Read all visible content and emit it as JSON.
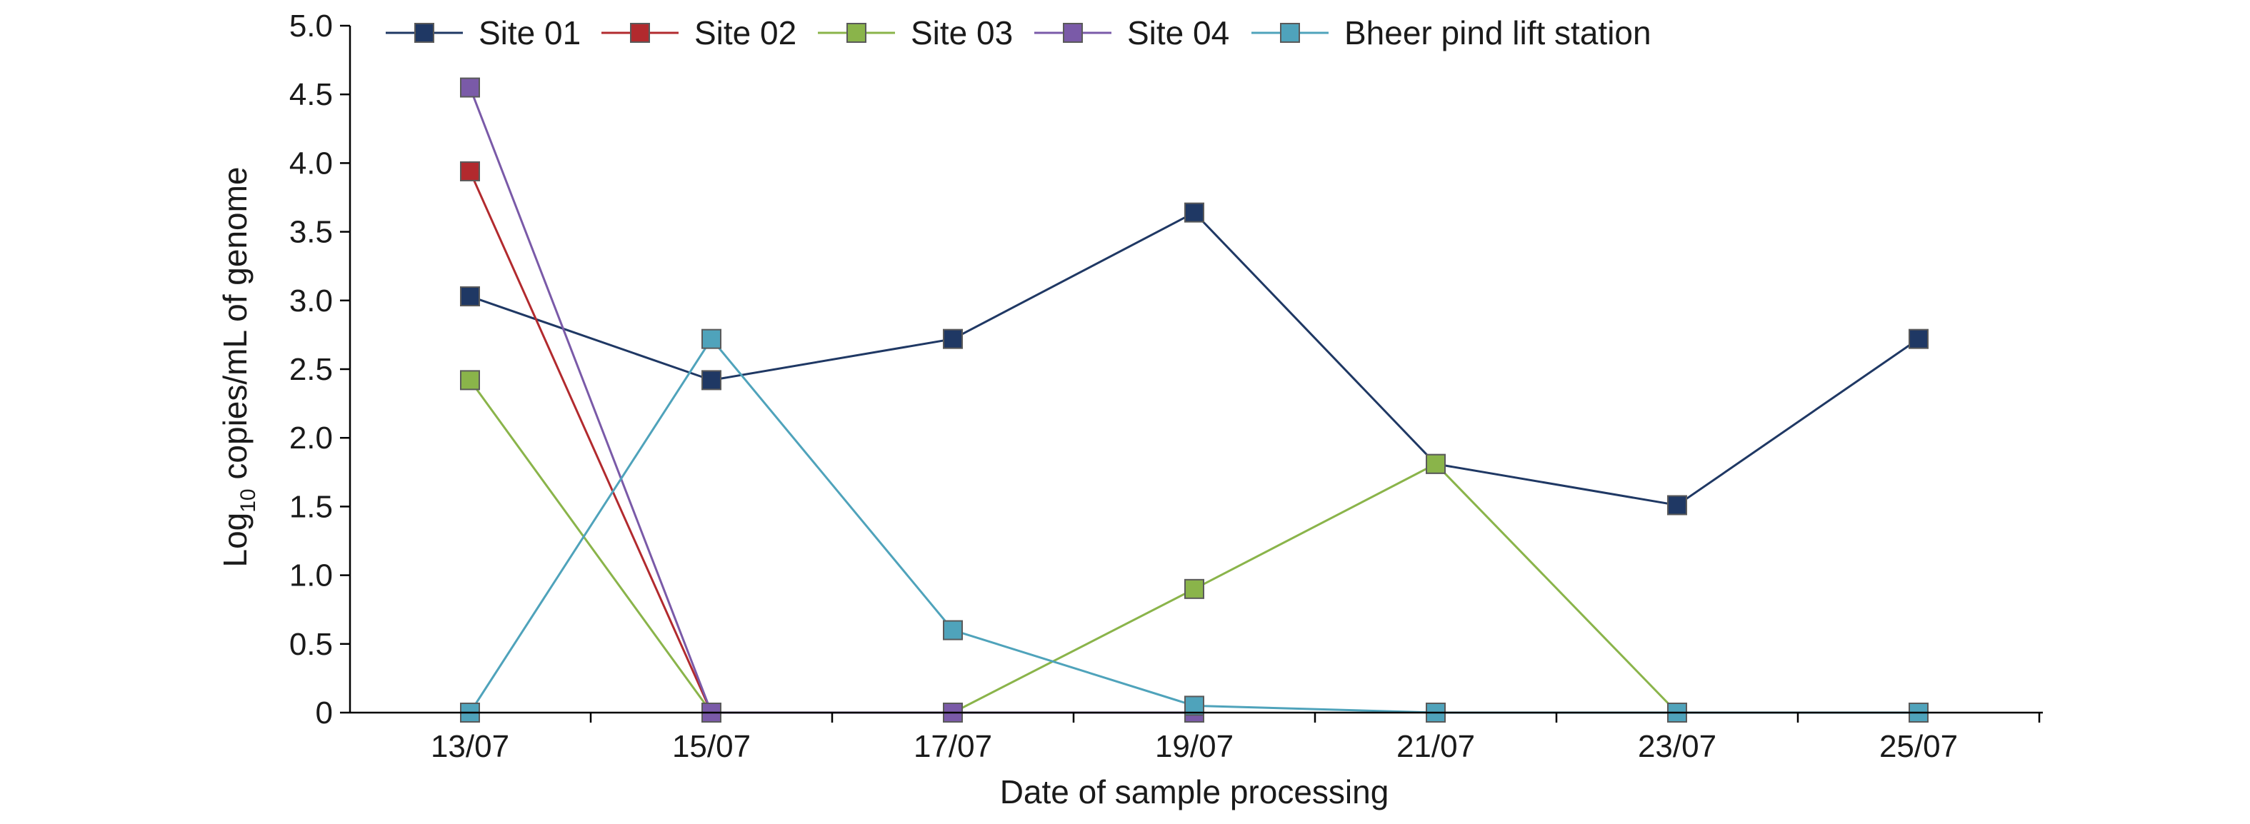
{
  "chart_data": {
    "type": "line",
    "title": "",
    "xlabel": "Date of sample processing",
    "ylabel": {
      "prefix": "Log",
      "subscript": "10",
      "suffix": " copies/mL of genome"
    },
    "categories": [
      "13/07",
      "15/07",
      "17/07",
      "19/07",
      "21/07",
      "23/07",
      "25/07"
    ],
    "y_ticks": [
      "0",
      "0.5",
      "1.0",
      "1.5",
      "2.0",
      "2.5",
      "3.0",
      "3.5",
      "4.0",
      "4.5",
      "5.0"
    ],
    "ylim": [
      0,
      5
    ],
    "grid": false,
    "legend_position": "top",
    "series": [
      {
        "name": "Site 01",
        "color": "#1f3864",
        "marker": "square",
        "points": [
          [
            "13/07",
            3.03
          ],
          [
            "15/07",
            2.42
          ],
          [
            "17/07",
            2.72
          ],
          [
            "19/07",
            3.64
          ],
          [
            "21/07",
            1.81
          ],
          [
            "23/07",
            1.51
          ],
          [
            "25/07",
            2.72
          ]
        ]
      },
      {
        "name": "Site 02",
        "color": "#b22a2e",
        "marker": "square",
        "points": [
          [
            "13/07",
            3.94
          ],
          [
            "15/07",
            0
          ]
        ]
      },
      {
        "name": "Site 03",
        "color": "#8ab44a",
        "marker": "square",
        "points": [
          [
            "13/07",
            2.42
          ],
          [
            "15/07",
            0
          ],
          [
            "17/07",
            0
          ],
          [
            "19/07",
            0.9
          ],
          [
            "21/07",
            1.81
          ],
          [
            "23/07",
            0
          ]
        ]
      },
      {
        "name": "Site 04",
        "color": "#7a5aa8",
        "marker": "square",
        "points": [
          [
            "13/07",
            4.55
          ],
          [
            "15/07",
            0
          ],
          [
            "17/07",
            0
          ],
          [
            "19/07",
            0
          ]
        ]
      },
      {
        "name": "Bheer pind lift station",
        "color": "#4fa3bb",
        "marker": "square",
        "points": [
          [
            "13/07",
            0
          ],
          [
            "15/07",
            2.72
          ],
          [
            "17/07",
            0.6
          ],
          [
            "19/07",
            0.05
          ],
          [
            "21/07",
            0
          ],
          [
            "23/07",
            0
          ],
          [
            "25/07",
            0
          ]
        ]
      }
    ]
  }
}
